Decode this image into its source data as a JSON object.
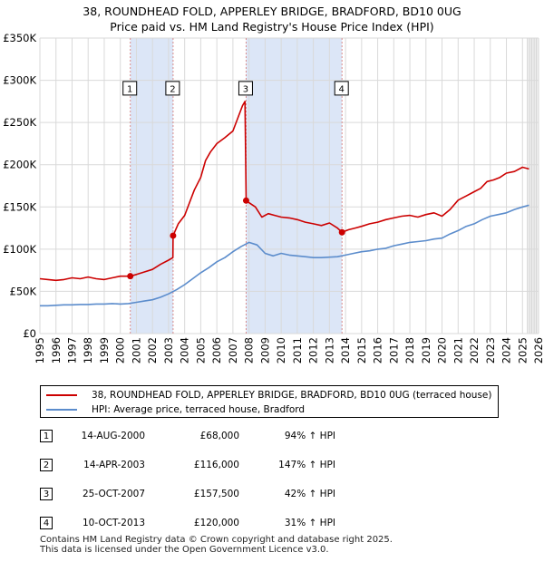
{
  "title_line1": "38, ROUNDHEAD FOLD, APPERLEY BRIDGE, BRADFORD, BD10 0UG",
  "title_line2": "Price paid vs. HM Land Registry's House Price Index (HPI)",
  "colors": {
    "property": "#cc0000",
    "hpi": "#5b8ccc",
    "shade": "#dce6f7",
    "grid": "#d9d9d9",
    "vline": "#d98c8c"
  },
  "legend": {
    "property_label": "38, ROUNDHEAD FOLD, APPERLEY BRIDGE, BRADFORD, BD10 0UG (terraced house)",
    "hpi_label": "HPI: Average price, terraced house, Bradford"
  },
  "transactions": [
    {
      "num": "1",
      "date": "14-AUG-2000",
      "price": "£68,000",
      "hpi": "94% ↑ HPI"
    },
    {
      "num": "2",
      "date": "14-APR-2003",
      "price": "£116,000",
      "hpi": "147% ↑ HPI"
    },
    {
      "num": "3",
      "date": "25-OCT-2007",
      "price": "£157,500",
      "hpi": "42% ↑ HPI"
    },
    {
      "num": "4",
      "date": "10-OCT-2013",
      "price": "£120,000",
      "hpi": "31% ↑ HPI"
    }
  ],
  "footer_line1": "Contains HM Land Registry data © Crown copyright and database right 2025.",
  "footer_line2": "This data is licensed under the Open Government Licence v3.0.",
  "chart_data": {
    "type": "line",
    "title": "38, ROUNDHEAD FOLD, APPERLEY BRIDGE, BRADFORD, BD10 0UG — Price paid vs. HM Land Registry's House Price Index (HPI)",
    "xlim": [
      1995,
      2026
    ],
    "ylim": [
      0,
      350000
    ],
    "y_ticks": [
      0,
      50000,
      100000,
      150000,
      200000,
      250000,
      300000,
      350000
    ],
    "y_tick_labels": [
      "£0",
      "£50K",
      "£100K",
      "£150K",
      "£200K",
      "£250K",
      "£300K",
      "£350K"
    ],
    "x_ticks": [
      1995,
      1996,
      1997,
      1998,
      1999,
      2000,
      2001,
      2002,
      2003,
      2004,
      2005,
      2006,
      2007,
      2008,
      2009,
      2010,
      2011,
      2012,
      2013,
      2014,
      2015,
      2016,
      2017,
      2018,
      2019,
      2020,
      2021,
      2022,
      2023,
      2024,
      2025,
      2026
    ],
    "shaded_spans": [
      [
        2000.62,
        2003.28
      ],
      [
        2007.82,
        2013.78
      ]
    ],
    "future_from": 2025.3,
    "markers": [
      {
        "label": "1",
        "x": 2000.62,
        "y": 68000
      },
      {
        "label": "2",
        "x": 2003.28,
        "y": 116000
      },
      {
        "label": "3",
        "x": 2007.82,
        "y": 157500
      },
      {
        "label": "4",
        "x": 2013.78,
        "y": 120000
      }
    ],
    "marker_box_y": 290000,
    "series": [
      {
        "name": "38, ROUNDHEAD FOLD, APPERLEY BRIDGE, BRADFORD, BD10 0UG (terraced house)",
        "x": [
          1995.0,
          1995.5,
          1996.0,
          1996.5,
          1997.0,
          1997.5,
          1998.0,
          1998.5,
          1999.0,
          1999.5,
          2000.0,
          2000.62,
          2001.0,
          2001.5,
          2002.0,
          2002.5,
          2003.0,
          2003.27,
          2003.28,
          2003.6,
          2004.0,
          2004.3,
          2004.6,
          2005.0,
          2005.3,
          2005.6,
          2006.0,
          2006.5,
          2007.0,
          2007.3,
          2007.6,
          2007.75,
          2007.82,
          2008.0,
          2008.4,
          2008.8,
          2009.2,
          2009.6,
          2010.0,
          2010.5,
          2011.0,
          2011.5,
          2012.0,
          2012.5,
          2013.0,
          2013.5,
          2013.78,
          2014.2,
          2014.6,
          2015.0,
          2015.5,
          2016.0,
          2016.5,
          2017.0,
          2017.5,
          2018.0,
          2018.5,
          2019.0,
          2019.5,
          2020.0,
          2020.5,
          2021.0,
          2021.5,
          2022.0,
          2022.4,
          2022.8,
          2023.2,
          2023.6,
          2024.0,
          2024.5,
          2025.0,
          2025.4
        ],
        "y": [
          65000,
          64000,
          63000,
          64000,
          66000,
          65000,
          67000,
          65000,
          64000,
          66000,
          68000,
          68000,
          70000,
          73000,
          76000,
          82000,
          87000,
          90000,
          116000,
          130000,
          140000,
          155000,
          170000,
          185000,
          205000,
          215000,
          225000,
          232000,
          240000,
          255000,
          270000,
          275000,
          157500,
          155000,
          150000,
          138000,
          142000,
          140000,
          138000,
          137000,
          135000,
          132000,
          130000,
          128000,
          131000,
          125000,
          120000,
          123000,
          125000,
          127000,
          130000,
          132000,
          135000,
          137000,
          139000,
          140000,
          138000,
          141000,
          143000,
          139000,
          147000,
          158000,
          163000,
          168000,
          172000,
          180000,
          182000,
          185000,
          190000,
          192000,
          197000,
          195000
        ]
      },
      {
        "name": "HPI: Average price, terraced house, Bradford",
        "x": [
          1995.0,
          1995.5,
          1996.0,
          1996.5,
          1997.0,
          1997.5,
          1998.0,
          1998.5,
          1999.0,
          1999.5,
          2000.0,
          2000.5,
          2001.0,
          2001.5,
          2002.0,
          2002.5,
          2003.0,
          2003.5,
          2004.0,
          2004.5,
          2005.0,
          2005.5,
          2006.0,
          2006.5,
          2007.0,
          2007.5,
          2008.0,
          2008.5,
          2009.0,
          2009.5,
          2010.0,
          2010.5,
          2011.0,
          2011.5,
          2012.0,
          2012.5,
          2013.0,
          2013.5,
          2014.0,
          2014.5,
          2015.0,
          2015.5,
          2016.0,
          2016.5,
          2017.0,
          2017.5,
          2018.0,
          2018.5,
          2019.0,
          2019.5,
          2020.0,
          2020.5,
          2021.0,
          2021.5,
          2022.0,
          2022.5,
          2023.0,
          2023.5,
          2024.0,
          2024.5,
          2025.0,
          2025.4
        ],
        "y": [
          33000,
          33000,
          33500,
          34000,
          34000,
          34500,
          34500,
          35000,
          35000,
          35500,
          35000,
          35500,
          37000,
          38500,
          40000,
          43000,
          47000,
          52000,
          58000,
          65000,
          72000,
          78000,
          85000,
          90000,
          97000,
          103000,
          108000,
          105000,
          95000,
          92000,
          95000,
          93000,
          92000,
          91000,
          90000,
          90000,
          90500,
          91000,
          93000,
          95000,
          97000,
          98000,
          100000,
          101000,
          104000,
          106000,
          108000,
          109000,
          110000,
          112000,
          113000,
          118000,
          122000,
          127000,
          130000,
          135000,
          139000,
          141000,
          143000,
          147000,
          150000,
          152000
        ]
      }
    ]
  }
}
